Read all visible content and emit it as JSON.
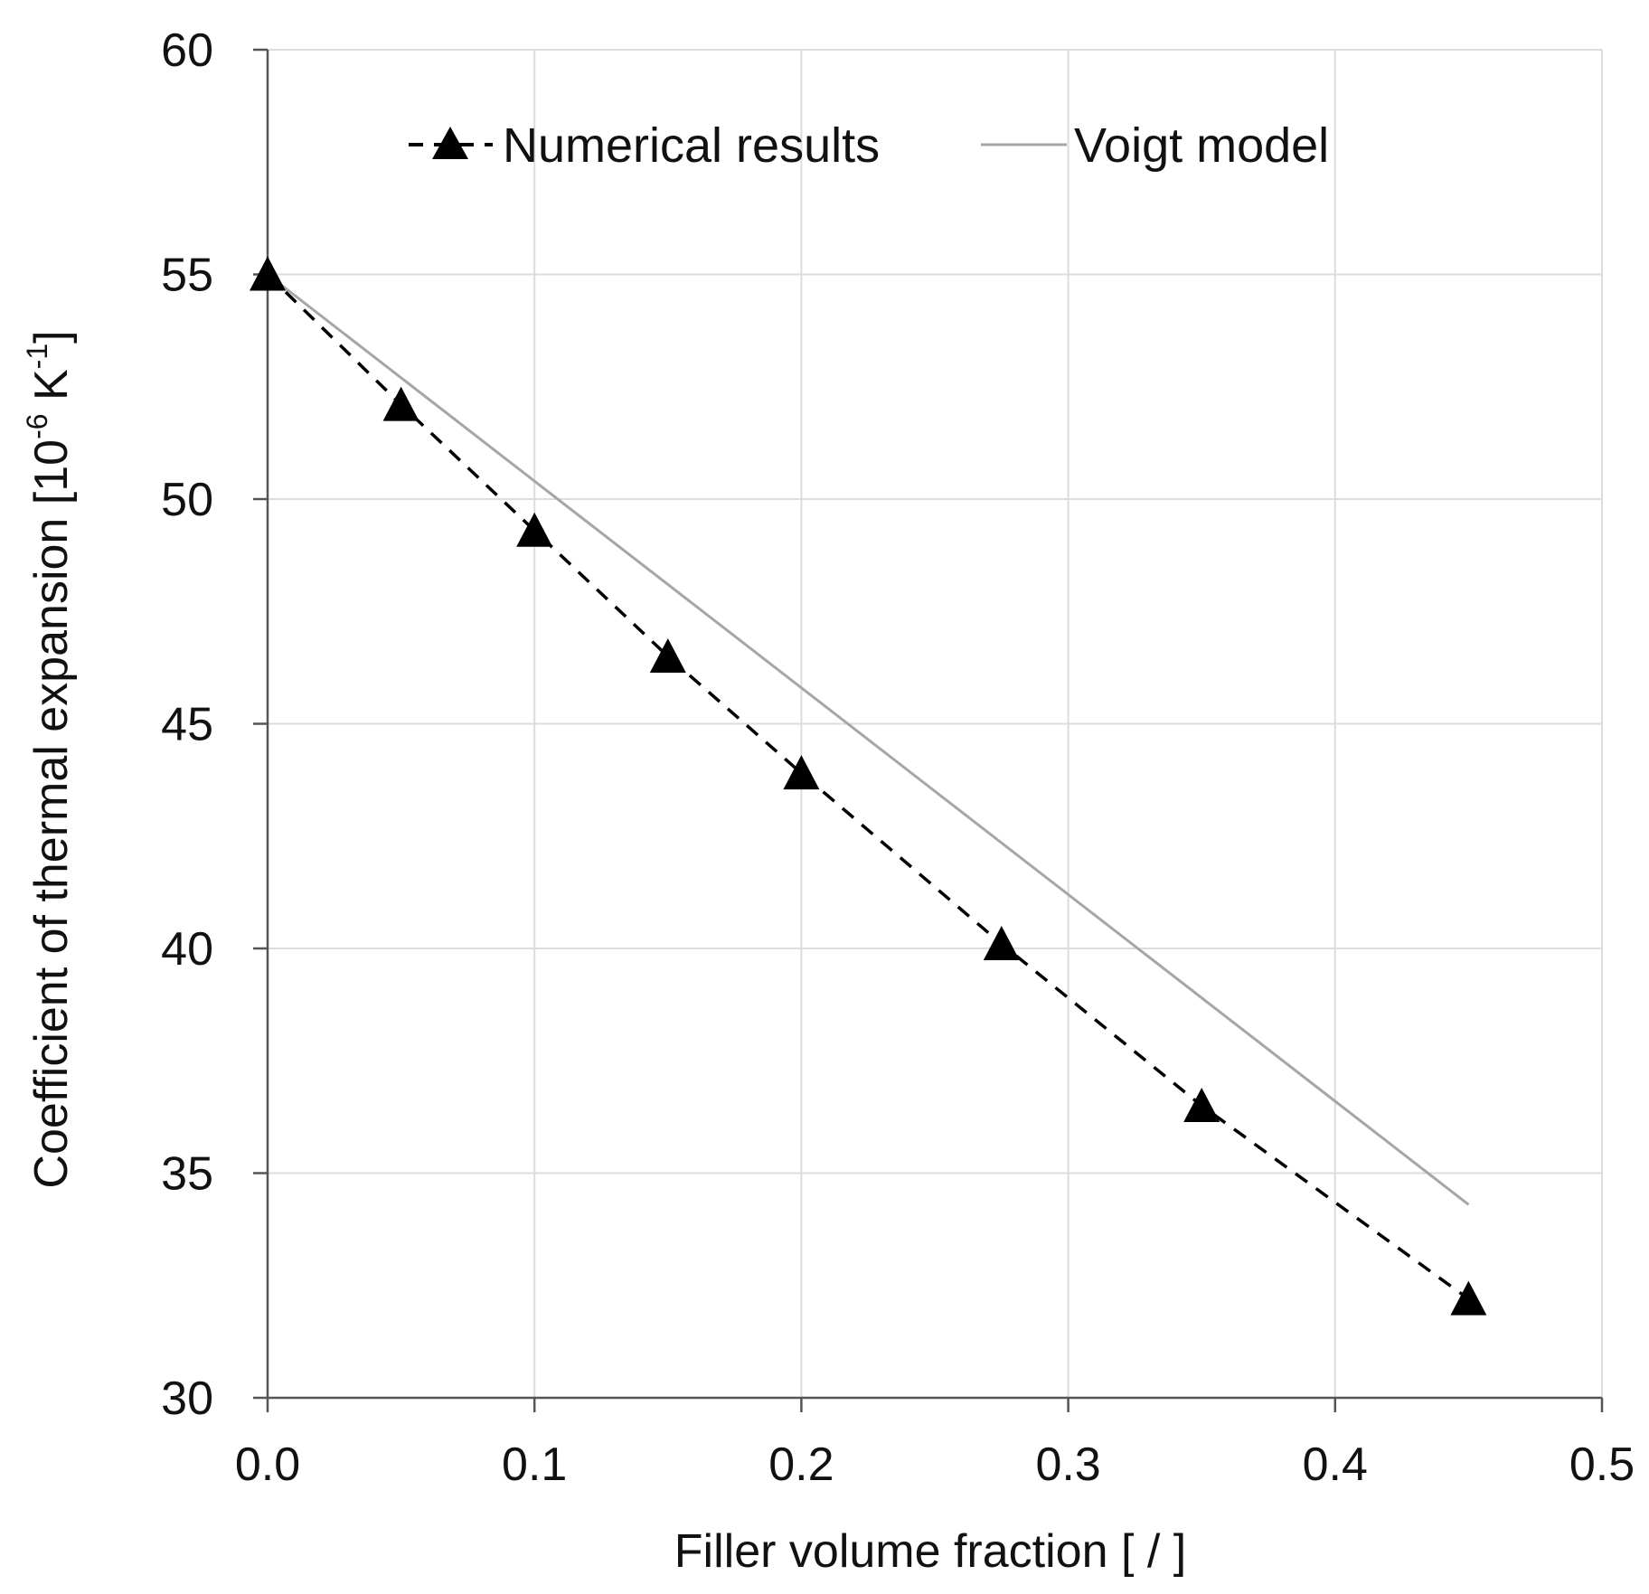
{
  "chart_data": {
    "type": "line",
    "title": "",
    "xlabel": "Filler volume fraction [ / ]",
    "ylabel": {
      "prefix": "Coefficient of thermal expansion [10",
      "exp1": "-6",
      "middle": " K",
      "exp2": "-1",
      "suffix": "]"
    },
    "xlim": [
      0,
      0.5
    ],
    "ylim": [
      30,
      60
    ],
    "xticks": [
      0,
      0.1,
      0.2,
      0.3,
      0.4,
      0.5
    ],
    "xtick_labels": [
      "0.0",
      "0.1",
      "0.2",
      "0.3",
      "0.4",
      "0.5"
    ],
    "yticks": [
      30,
      35,
      40,
      45,
      50,
      55,
      60
    ],
    "ytick_labels": [
      "30",
      "35",
      "40",
      "45",
      "50",
      "55",
      "60"
    ],
    "grid": true,
    "legend_position": "top",
    "series": [
      {
        "name": "Numerical results",
        "style": "dashed-with-triangle-markers",
        "color": "#000000",
        "x": [
          0,
          0.05,
          0.1,
          0.15,
          0.2,
          0.275,
          0.35,
          0.45
        ],
        "y": [
          55.0,
          52.1,
          49.3,
          46.5,
          43.9,
          40.1,
          36.5,
          32.2
        ]
      },
      {
        "name": "Voigt model",
        "style": "solid",
        "color": "#a6a6a6",
        "x": [
          0,
          0.45
        ],
        "y": [
          55.0,
          34.3
        ]
      }
    ]
  }
}
